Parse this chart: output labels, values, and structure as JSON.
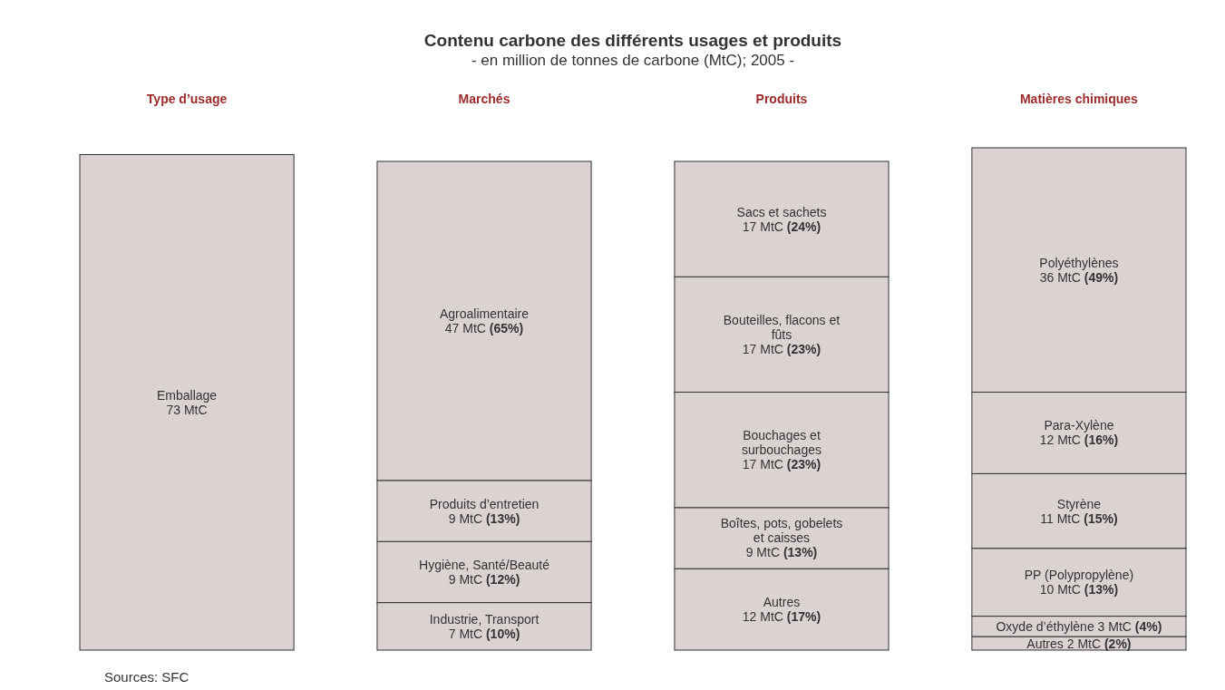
{
  "chart_data": {
    "type": "bar",
    "stacked": true,
    "title": "Contenu carbone des différents usages et produits",
    "subtitle": "- en million de tonnes de carbone (MtC); 2005 -",
    "categories": [
      "Type d’usage",
      "Marchés",
      "Produits",
      "Matières chimiques"
    ],
    "annotations": [
      "Sources: SFC"
    ],
    "series": [
      {
        "name": "Emballage",
        "color": "#dbd3d1",
        "values": [
          73,
          null,
          null,
          null
        ],
        "value_labels": [
          "73 MtC",
          null,
          null,
          null
        ]
      },
      {
        "name": "Industrie, Transport",
        "color": "#dbd3d1",
        "values": [
          null,
          7,
          null,
          null
        ],
        "value_labels": [
          null,
          "7 MtC (10%)",
          null,
          null
        ]
      },
      {
        "name": "Hygiène, Santé/Beauté",
        "color": "#dbd3d1",
        "values": [
          null,
          9,
          null,
          null
        ],
        "value_labels": [
          null,
          "9 MtC (12%)",
          null,
          null
        ]
      },
      {
        "name": "Produits d’entretien",
        "color": "#dbd3d1",
        "values": [
          null,
          9,
          null,
          null
        ],
        "value_labels": [
          null,
          "9 MtC (13%)",
          null,
          null
        ]
      },
      {
        "name": "Agroalimentaire",
        "color": "#dbd3d1",
        "values": [
          null,
          47,
          null,
          null
        ],
        "value_labels": [
          null,
          "47 MtC (65%)",
          null,
          null
        ]
      },
      {
        "name": "Autres",
        "color": "#dbd3d1",
        "values": [
          null,
          null,
          12,
          null
        ],
        "value_labels": [
          null,
          null,
          "12 MtC (17%)",
          null
        ]
      },
      {
        "name": "Boîtes, pots, gobelets et caisses",
        "color": "#dbd3d1",
        "values": [
          null,
          null,
          9,
          null
        ],
        "value_labels": [
          null,
          null,
          "9 MtC (13%)",
          null
        ]
      },
      {
        "name": "Bouchages et surbouchages",
        "color": "#dbd3d1",
        "values": [
          null,
          null,
          17,
          null
        ],
        "value_labels": [
          null,
          null,
          "17 MtC (23%)",
          null
        ]
      },
      {
        "name": "Bouteilles, flacons et fûts",
        "color": "#dbd3d1",
        "values": [
          null,
          null,
          17,
          null
        ],
        "value_labels": [
          null,
          null,
          "17 MtC (23%)",
          null
        ]
      },
      {
        "name": "Sacs et sachets",
        "color": "#dbd3d1",
        "values": [
          null,
          null,
          17,
          null
        ],
        "value_labels": [
          null,
          null,
          "17 MtC (24%)",
          null
        ]
      },
      {
        "name": "Autres",
        "color": "#dbd3d1",
        "values": [
          null,
          null,
          null,
          2
        ],
        "value_labels": [
          null,
          null,
          null,
          "2 MtC (2%)"
        ]
      },
      {
        "name": "Oxyde d’éthylène",
        "color": "#dbd3d1",
        "values": [
          null,
          null,
          null,
          3
        ],
        "value_labels": [
          null,
          null,
          null,
          "3 MtC (4%)"
        ]
      },
      {
        "name": "PP (Polypropylène)",
        "color": "#dbd3d1",
        "values": [
          null,
          null,
          null,
          10
        ],
        "value_labels": [
          null,
          null,
          null,
          "10 MtC (13%)"
        ]
      },
      {
        "name": "Styrène",
        "color": "#dbd3d1",
        "values": [
          null,
          null,
          null,
          11
        ],
        "value_labels": [
          null,
          null,
          null,
          "11 MtC (15%)"
        ]
      },
      {
        "name": "Para-Xylène",
        "color": "#dbd3d1",
        "values": [
          null,
          null,
          null,
          12
        ],
        "value_labels": [
          null,
          null,
          null,
          "12 MtC (16%)"
        ]
      },
      {
        "name": "Polyéthylènes",
        "color": "#dbd3d1",
        "values": [
          null,
          null,
          null,
          36
        ],
        "value_labels": [
          null,
          null,
          null,
          "36 MtC (49%)"
        ]
      }
    ]
  }
}
